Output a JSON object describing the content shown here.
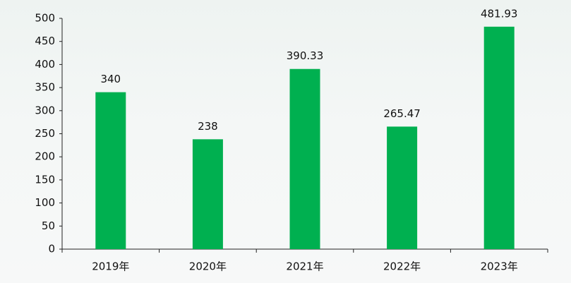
{
  "chart_data": {
    "type": "bar",
    "categories": [
      "2019年",
      "2020年",
      "2021年",
      "2022年",
      "2023年"
    ],
    "values": [
      340,
      238,
      390.33,
      265.47,
      481.93
    ],
    "color": "#00b050",
    "ylim": [
      0,
      500
    ],
    "yticks": [
      0,
      50,
      100,
      150,
      200,
      250,
      300,
      350,
      400,
      450,
      500
    ],
    "grid": false,
    "data_labels": true
  }
}
